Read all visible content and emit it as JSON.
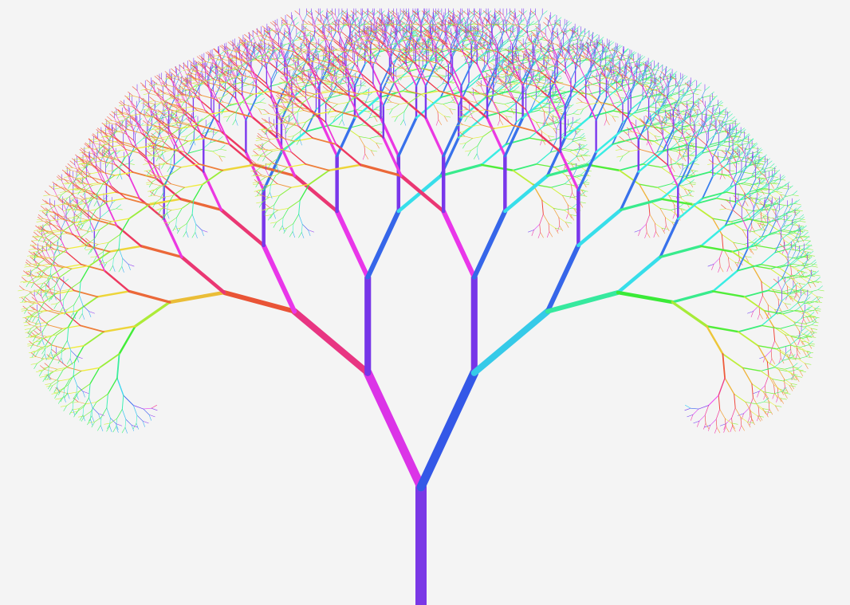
{
  "canvas": {
    "background": "#f4f4f4"
  },
  "tree": {
    "trunk_color": "#7a38e6",
    "branch_angle_deg": 25,
    "depth": 12,
    "palette": {
      "left_color": "#e8346b",
      "center_color": "#7a38e6",
      "right_color": "#2ee0e0",
      "tip_left": "#f0a030",
      "tip_right": "#40f060"
    }
  }
}
